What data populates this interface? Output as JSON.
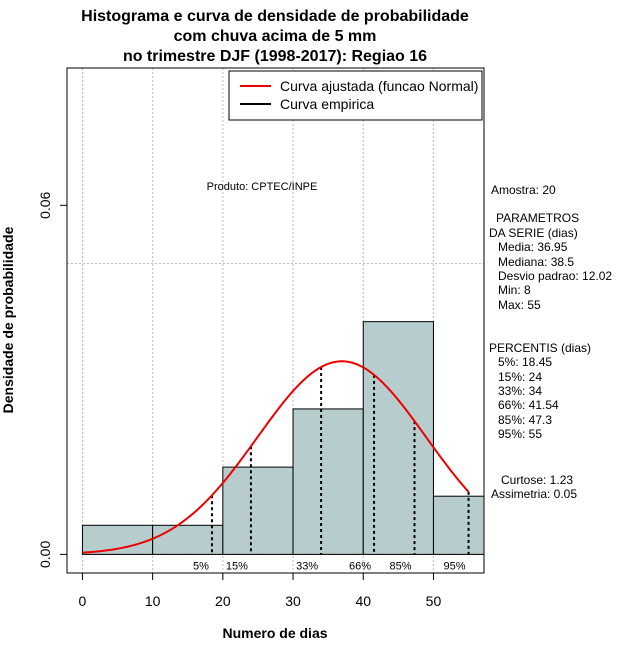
{
  "chart_data": {
    "type": "bar",
    "title_lines": [
      "Histograma e curva de densidade de probabilidade",
      "com chuva acima de 5 mm",
      "no trimestre DJF (1998-2017): Regiao 16"
    ],
    "xlabel": "Numero de dias",
    "ylabel": "Densidade de probabilidade",
    "xlim": [
      -2.2,
      57.2
    ],
    "ylim": [
      -0.0032,
      0.0836
    ],
    "x_ticks": [
      0,
      10,
      20,
      30,
      40,
      50
    ],
    "y_ticks": [
      0,
      0.06
    ],
    "y_tick_labels": [
      "0.00",
      "0.06"
    ],
    "grid_x": [
      0,
      10,
      20,
      30,
      40,
      50
    ],
    "grid_y": [
      0.05
    ],
    "bins": [
      {
        "start": 0,
        "end": 10,
        "density": 0.005
      },
      {
        "start": 10,
        "end": 20,
        "density": 0.005
      },
      {
        "start": 20,
        "end": 30,
        "density": 0.015
      },
      {
        "start": 30,
        "end": 40,
        "density": 0.025
      },
      {
        "start": 40,
        "end": 50,
        "density": 0.04
      },
      {
        "start": 50,
        "end": 57.2,
        "density": 0.01
      }
    ],
    "bar_color": "#b7cdcd",
    "normal_curve": {
      "name": "Curva ajustada (funcao Normal)",
      "mean": 36.95,
      "sd": 12.02,
      "from": 0,
      "to": 55,
      "color": "#ee0000"
    },
    "empirical_curve": {
      "name": "Curva empirica",
      "color": "#000000"
    },
    "percentile_markers": [
      {
        "label": "5%",
        "x": 18.45
      },
      {
        "label": "15%",
        "x": 24
      },
      {
        "label": "33%",
        "x": 34
      },
      {
        "label": "66%",
        "x": 41.54
      },
      {
        "label": "85%",
        "x": 47.3
      },
      {
        "label": "95%",
        "x": 55
      }
    ],
    "legend_position": "top-right",
    "annotation": "Produto: CPTEC/INPE",
    "side_panel": {
      "amostra": "Amostra: 20",
      "param_title_1": "PARAMETROS",
      "param_title_2": "DA SERIE (dias)",
      "params": [
        "Media: 36.95",
        "Mediana: 38.5",
        "Desvio padrao: 12.02",
        "Min: 8",
        "Max: 55"
      ],
      "perc_title": "PERCENTIS (dias)",
      "percentis": [
        "5%: 18.45",
        "15%: 24",
        "33%: 34",
        "66%: 41.54",
        "85%: 47.3",
        "95%: 55"
      ],
      "curtose": "Curtose: 1.23",
      "assimetria": "Assimetria: 0.05"
    }
  }
}
